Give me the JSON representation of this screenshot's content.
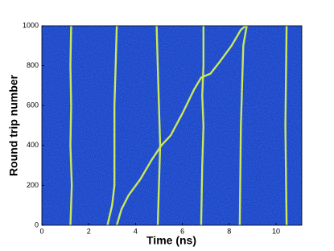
{
  "chart_data": {
    "type": "line",
    "xlabel": "Time (ns)",
    "ylabel": "Round trip number",
    "xlim": [
      0,
      11.1
    ],
    "xticks": [
      0,
      2,
      4,
      6,
      8,
      10
    ],
    "ylim": [
      0,
      1000
    ],
    "yticks": [
      0,
      200,
      400,
      600,
      800,
      1000
    ],
    "background": "#1c43c6",
    "series": [
      {
        "color": "#c9e85c",
        "x": [
          1.22,
          1.28,
          1.22,
          1.25,
          1.22,
          1.25
        ],
        "values": [
          0,
          200,
          400,
          600,
          800,
          1000
        ]
      },
      {
        "color": "#c9e85c",
        "x": [
          2.8,
          3.0,
          3.1,
          3.1,
          3.1,
          3.15,
          3.2
        ],
        "values": [
          0,
          100,
          200,
          400,
          600,
          800,
          1000
        ]
      },
      {
        "color": "#c9e85c",
        "x": [
          3.2,
          3.4,
          3.7,
          4.2,
          4.7,
          5.1,
          5.5,
          6.0,
          6.5,
          6.8,
          7.2,
          7.6,
          8.1,
          8.5,
          8.7
        ],
        "values": [
          0,
          80,
          150,
          230,
          330,
          400,
          450,
          560,
          680,
          740,
          760,
          820,
          900,
          980,
          1000
        ]
      },
      {
        "color": "#c9e85c",
        "x": [
          4.95,
          5.0,
          5.05,
          5.0,
          4.95,
          4.9
        ],
        "values": [
          0,
          200,
          400,
          600,
          800,
          1000
        ]
      },
      {
        "color": "#c9e85c",
        "x": [
          6.8,
          6.85,
          6.9,
          6.85,
          6.9,
          6.9
        ],
        "values": [
          0,
          300,
          500,
          650,
          800,
          1000
        ]
      },
      {
        "color": "#c9e85c",
        "x": [
          8.45,
          8.5,
          8.6,
          8.75
        ],
        "values": [
          0,
          500,
          900,
          1000
        ]
      },
      {
        "color": "#c9e85c",
        "x": [
          10.45,
          10.4,
          10.45
        ],
        "values": [
          0,
          500,
          1000
        ]
      }
    ]
  }
}
